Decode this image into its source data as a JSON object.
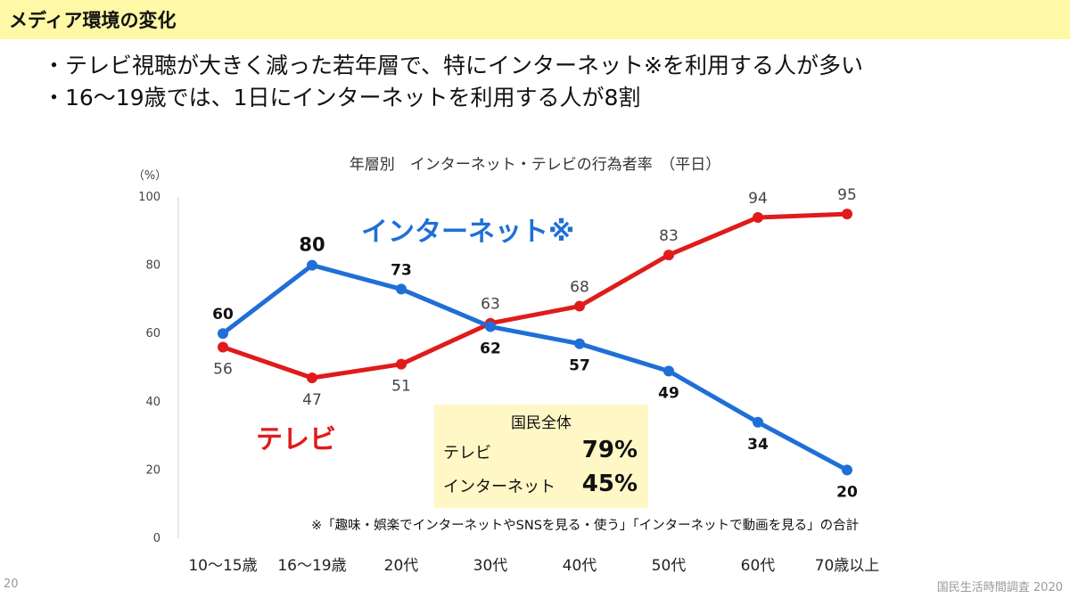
{
  "header": {
    "title": "メディア環境の変化"
  },
  "bullets": [
    "・テレビ視聴が大きく減った若年層で、特にインターネット※を利用する人が多い",
    "・16〜19歳では、1日にインターネットを利用する人が8割"
  ],
  "chart_data": {
    "type": "line",
    "title": "年層別　インターネット・テレビの行為者率　（平日）",
    "ylabel": "（%）",
    "ylim": [
      0,
      100
    ],
    "yticks": [
      0,
      20,
      40,
      60,
      80,
      100
    ],
    "categories": [
      "10〜15歳",
      "16〜19歳",
      "20代",
      "30代",
      "40代",
      "50代",
      "60代",
      "70歳以上"
    ],
    "series": [
      {
        "name": "インターネット※",
        "color": "#1f6fd6",
        "values": [
          60,
          80,
          73,
          62,
          57,
          49,
          34,
          20
        ]
      },
      {
        "name": "テレビ",
        "color": "#e01b1b",
        "values": [
          56,
          47,
          51,
          63,
          68,
          83,
          94,
          95
        ]
      }
    ],
    "annotations": {
      "internet_label": "インターネット※",
      "tv_label": "テレビ"
    }
  },
  "summary": {
    "title": "国民全体",
    "rows": [
      {
        "label": "テレビ",
        "value": "79%"
      },
      {
        "label": "インターネット",
        "value": "45%"
      }
    ]
  },
  "footnote": "※「趣味・娯楽でインターネットやSNSを見る・使う」「インターネットで動画を見る」の合計",
  "page_number": "20",
  "source": "国民生活時間調査 2020"
}
